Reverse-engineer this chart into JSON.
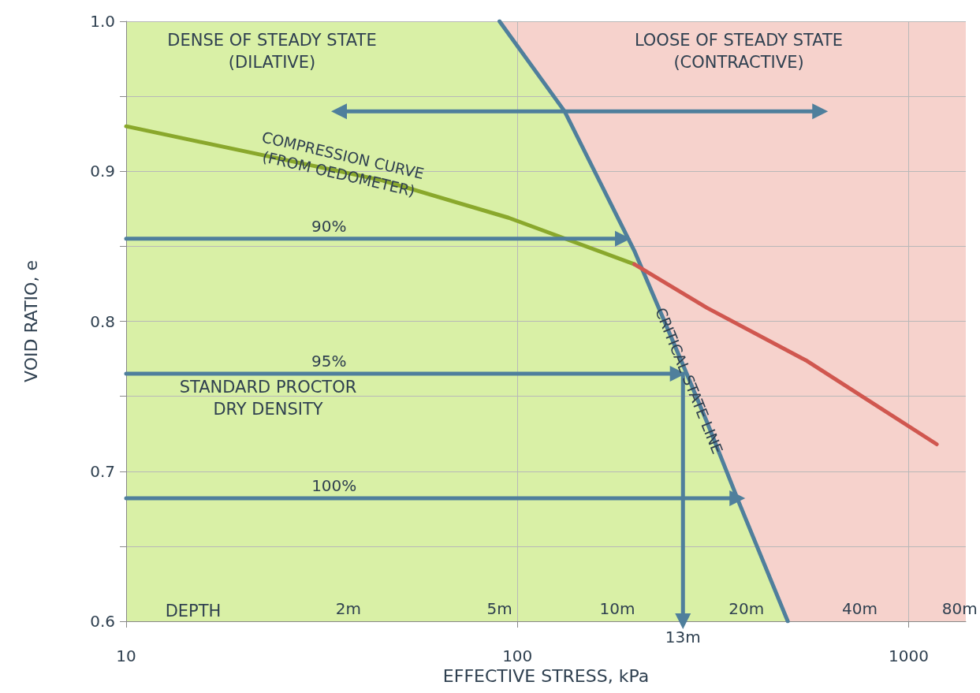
{
  "chart_data": {
    "type": "line",
    "xlabel": "EFFECTIVE STRESS, kPa",
    "ylabel": "VOID RATIO, e",
    "log": "x",
    "xlim": [
      10,
      1400
    ],
    "xticks": [
      10,
      100,
      1000
    ],
    "ylim": [
      0.6,
      1.0
    ],
    "yticks": [
      0.6,
      {
        "value": 0.65,
        "label": null
      },
      0.7,
      {
        "value": 0.75,
        "label": null
      },
      0.8,
      {
        "value": 0.85,
        "label": null
      },
      0.9,
      {
        "value": 0.95,
        "label": null
      },
      {
        "value": 1.0,
        "label": "1.0"
      }
    ],
    "grid": true,
    "marker": "none",
    "bands": [
      {
        "axis": "x",
        "from": 10,
        "to": 1400,
        "color": "#f6d2cc"
      }
    ],
    "series": [
      {
        "type": "area",
        "color": "#d9f0a6",
        "x": [
          10,
          90,
          132,
          199,
          261,
          305,
          370,
          491
        ],
        "values": [
          1.0,
          1.0,
          0.94,
          0.847,
          0.775,
          0.733,
          0.678,
          0.6
        ]
      },
      {
        "name": "CRITICAL STATE LINE",
        "color": "#4f7f9c",
        "x": [
          90,
          132,
          199,
          261,
          305,
          370,
          491
        ],
        "values": [
          1.0,
          0.94,
          0.847,
          0.775,
          0.733,
          0.678,
          0.6
        ]
      },
      {
        "name": "COMPRESSION CURVE\n(FROM OEDOMETER)",
        "color": "#8aa82c",
        "x": [
          10,
          45,
          95,
          199
        ],
        "values": [
          0.93,
          0.894,
          0.869,
          0.838
        ]
      },
      {
        "color": "#d0574f",
        "x": [
          199,
          305,
          546,
          1180
        ],
        "values": [
          0.838,
          0.809,
          0.774,
          0.718
        ]
      },
      {
        "color": "#4f7f9c",
        "marker": "triangle",
        "x": [
          35,
          594
        ],
        "values": [
          0.94,
          0.94
        ]
      },
      {
        "color": "#4f7f9c",
        "marker": "triangle",
        "x": [
          10,
          186
        ],
        "values": [
          0.855,
          0.855
        ]
      },
      {
        "color": "#4f7f9c",
        "marker": "triangle",
        "x": [
          10,
          257
        ],
        "values": [
          0.765,
          0.765
        ]
      },
      {
        "color": "#4f7f9c",
        "marker": "triangle",
        "x": [
          265,
          265
        ],
        "values": [
          0.765,
          0.6
        ]
      },
      {
        "color": "#4f7f9c",
        "marker": "triangle",
        "x": [
          10,
          365
        ],
        "values": [
          0.682,
          0.682
        ]
      }
    ],
    "annotations": [
      "DENSE OF STEADY STATE\n(DILATIVE)",
      "LOOSE OF STEADY STATE\n(CONTRACTIVE)",
      "STANDARD PROCTOR\nDRY DENSITY",
      "DEPTH",
      {
        "text": "90%",
        "x": 33,
        "y": 0.855
      },
      {
        "text": "95%",
        "x": 33,
        "y": 0.765
      },
      {
        "text": "100%",
        "x": 34,
        "y": 0.682
      },
      {
        "text": "2m",
        "x": 37,
        "y": 0.6
      },
      {
        "text": "5m",
        "x": 90,
        "y": 0.6
      },
      {
        "text": "10m",
        "x": 180,
        "y": 0.6
      },
      {
        "text": "13m",
        "x": 265,
        "y": 0.6
      },
      {
        "text": "20m",
        "x": 385,
        "y": 0.6
      },
      {
        "text": "40m",
        "x": 750,
        "y": 0.6
      },
      {
        "text": "80m",
        "x": 1350,
        "y": 0.6
      }
    ]
  }
}
